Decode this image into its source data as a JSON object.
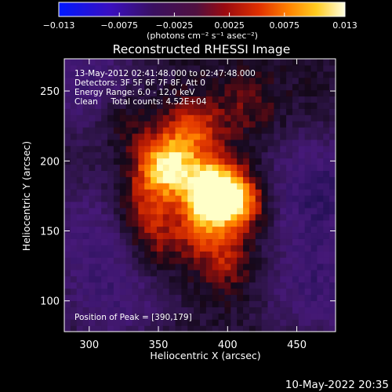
{
  "colors": {
    "background": "#000000",
    "foreground": "#ffffff",
    "colormap": [
      "#0018ff",
      "#3a1080",
      "#3a1a60",
      "#5a2a6e",
      "#8a1020",
      "#cc2000",
      "#ff6600",
      "#ffbb10",
      "#ffffc8"
    ]
  },
  "colorbar": {
    "ticks": [
      "−0.013",
      "−0.0075",
      "−0.0025",
      "0.0025",
      "0.0075",
      "0.013"
    ],
    "range": [
      -0.013,
      0.013
    ],
    "unit_label": "(photons cm⁻² s⁻¹ asec⁻²)"
  },
  "footer": {
    "timestamp": "10-May-2022 20:35"
  },
  "chart_data": {
    "type": "heatmap",
    "title": "Reconstructed RHESSI Image",
    "xlabel": "Heliocentric X (arcsec)",
    "ylabel": "Heliocentric Y (arcsec)",
    "xlim": [
      282,
      478
    ],
    "ylim": [
      78,
      273
    ],
    "xticks": [
      300,
      350,
      400,
      450
    ],
    "yticks": [
      100,
      150,
      200,
      250
    ],
    "annotations": [
      "13-May-2012 02:41:48.000 to 02:47:48.000",
      "Detectors: 3F 5F 6F 7F 8F, Att 0",
      "Energy Range: 6.0 - 12.0 keV",
      "Clean     Total counts: 4.52E+04"
    ],
    "peak_label": "Position of Peak = [390,179]",
    "peak": [
      390,
      179
    ],
    "sources": [
      {
        "x": 355,
        "y": 197,
        "intensity": 1.0
      },
      {
        "x": 388,
        "y": 179,
        "intensity": 1.15
      },
      {
        "x": 407,
        "y": 171,
        "intensity": 0.8
      },
      {
        "x": 375,
        "y": 222,
        "intensity": 0.55
      },
      {
        "x": 340,
        "y": 168,
        "intensity": 0.45
      },
      {
        "x": 382,
        "y": 150,
        "intensity": 0.45
      },
      {
        "x": 400,
        "y": 127,
        "intensity": 0.35
      },
      {
        "x": 345,
        "y": 140,
        "intensity": 0.35
      },
      {
        "x": 325,
        "y": 232,
        "intensity": 0.3
      },
      {
        "x": 415,
        "y": 240,
        "intensity": 0.25
      }
    ],
    "negative_regions": [
      {
        "x": 300,
        "y": 255,
        "intensity": -0.5
      },
      {
        "x": 465,
        "y": 180,
        "intensity": -0.6
      },
      {
        "x": 300,
        "y": 150,
        "intensity": -0.4
      },
      {
        "x": 465,
        "y": 110,
        "intensity": -0.5
      },
      {
        "x": 320,
        "y": 100,
        "intensity": -0.4
      }
    ]
  }
}
